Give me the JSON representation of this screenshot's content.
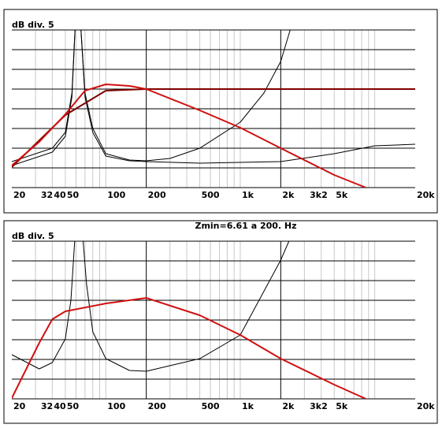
{
  "chart_data": [
    {
      "type": "line",
      "ylabel": "dB div. 5",
      "xscale": "log",
      "xlim": [
        20,
        20000
      ],
      "ylim": [
        0,
        40
      ],
      "yticks": [
        0,
        5,
        10,
        15,
        20,
        25,
        30,
        35,
        40
      ],
      "xticks": [
        20,
        32,
        40,
        50,
        100,
        200,
        500,
        {
          "value": 1000,
          "label": "1k"
        },
        {
          "value": 2000,
          "label": "2k"
        },
        {
          "value": 3200,
          "label": "3k2"
        },
        {
          "value": 5000,
          "label": "5k"
        },
        {
          "value": 20000,
          "label": "20k"
        }
      ],
      "xgrid": [
        30,
        40,
        50,
        60,
        70,
        80,
        90,
        100,
        300,
        400,
        500,
        600,
        700,
        800,
        900,
        1000,
        3000,
        4000,
        5000,
        6000,
        7000,
        8000,
        9000,
        10000
      ],
      "xgrid_major": [
        200,
        2000
      ],
      "series": [
        {
          "color": "#000000",
          "x": [
            20,
            40,
            50,
            56,
            60,
            64,
            70,
            80,
            100,
            150,
            200,
            300,
            500,
            1000,
            1500,
            2000,
            2400
          ],
          "values": [
            6.6,
            10,
            14,
            24,
            45,
            45,
            24,
            15,
            8.6,
            7,
            6.8,
            7.4,
            10,
            16.6,
            24,
            32,
            41
          ]
        },
        {
          "color": "#000000",
          "x": [
            20,
            40,
            50,
            56,
            60,
            64,
            70,
            80,
            100,
            150,
            200,
            500,
            1000,
            2000,
            5000,
            10000,
            20000
          ],
          "values": [
            5.6,
            9,
            13,
            23,
            45,
            45,
            23,
            14,
            8,
            6.8,
            6.6,
            6.2,
            6.4,
            6.6,
            8.6,
            10.6,
            11
          ]
        },
        {
          "color": "#800000",
          "x": [
            20,
            50,
            100,
            200,
            20000
          ],
          "values": [
            5.2,
            18.4,
            24.6,
            25,
            25
          ]
        },
        {
          "color": "#d01010",
          "x": [
            20,
            32,
            50,
            70,
            100,
            150,
            200,
            500,
            1000,
            2000,
            5000,
            8600
          ],
          "values": [
            5.6,
            11.6,
            18.6,
            24.6,
            26.2,
            25.8,
            25,
            19.6,
            15.2,
            10,
            3.2,
            0
          ]
        }
      ]
    },
    {
      "type": "line",
      "title": "Zmin=6.61 a 200. Hz",
      "ylabel": "dB div. 5",
      "xscale": "log",
      "xlim": [
        20,
        20000
      ],
      "ylim": [
        0,
        40
      ],
      "yticks": [
        0,
        5,
        10,
        15,
        20,
        25,
        30,
        35,
        40
      ],
      "xticks": [
        20,
        32,
        40,
        50,
        100,
        200,
        500,
        {
          "value": 1000,
          "label": "1k"
        },
        {
          "value": 2000,
          "label": "2k"
        },
        {
          "value": 3200,
          "label": "3k2"
        },
        {
          "value": 5000,
          "label": "5k"
        },
        {
          "value": 20000,
          "label": "20k"
        }
      ],
      "xgrid": [
        30,
        40,
        50,
        60,
        70,
        80,
        90,
        100,
        300,
        400,
        500,
        600,
        700,
        800,
        900,
        1000,
        3000,
        4000,
        5000,
        6000,
        7000,
        8000,
        9000,
        10000
      ],
      "xgrid_major": [
        200,
        2000
      ],
      "series": [
        {
          "color": "#000000",
          "x": [
            20,
            32,
            40,
            50,
            55,
            60,
            66,
            72,
            80,
            100,
            150,
            200,
            500,
            1000,
            2000,
            2300
          ],
          "values": [
            11.2,
            7.6,
            9.2,
            15.2,
            25,
            45,
            45,
            29,
            17,
            10.2,
            7.2,
            7,
            10.2,
            16.2,
            35.2,
            40
          ]
        },
        {
          "color": "#d01010",
          "x": [
            20,
            32,
            40,
            50,
            100,
            200,
            500,
            1000,
            2000,
            5000,
            8600
          ],
          "values": [
            0.2,
            14.2,
            20.2,
            22.2,
            24.2,
            25.6,
            21.2,
            16.2,
            10.2,
            3.6,
            0
          ]
        }
      ]
    }
  ]
}
